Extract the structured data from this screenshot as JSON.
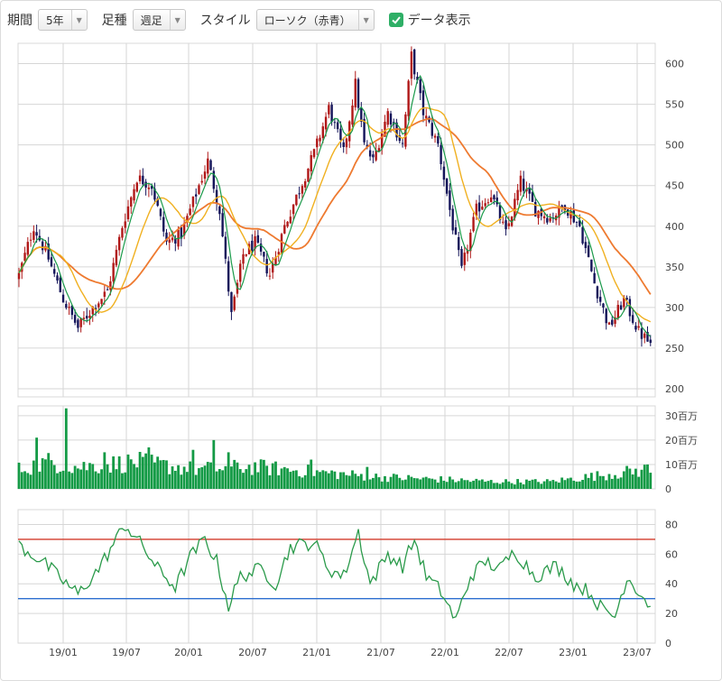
{
  "toolbar": {
    "period_label": "期間",
    "period_value": "5年",
    "interval_label": "足種",
    "interval_value": "週足",
    "style_label": "スタイル",
    "style_value": "ローソク（赤青）",
    "data_display_label": "データ表示",
    "data_display_checked": true
  },
  "colors": {
    "candle_up": "#b01818",
    "candle_down": "#14145a",
    "ma_short": "#1a9a4a",
    "ma_mid": "#f0b020",
    "ma_long": "#ee7a30",
    "volume": "#139a45",
    "rsi_line": "#2a9a4a",
    "rsi_upper": "#d23a2a",
    "rsi_lower": "#2d6fd0",
    "grid": "#d6d6d6"
  },
  "chart_data": [
    {
      "type": "candlestick",
      "panel": "price",
      "x_tick_labels": [
        "19/01",
        "19/07",
        "20/01",
        "20/07",
        "21/01",
        "21/07",
        "22/01",
        "22/07",
        "23/01",
        "23/07"
      ],
      "y_tick_labels": [
        "200",
        "250",
        "300",
        "350",
        "400",
        "450",
        "500",
        "550",
        "600"
      ],
      "ylim": [
        190,
        625
      ],
      "grid": true,
      "close_anchors": [
        {
          "w": 0,
          "v": 340
        },
        {
          "w": 5,
          "v": 400
        },
        {
          "w": 10,
          "v": 360
        },
        {
          "w": 15,
          "v": 310
        },
        {
          "w": 20,
          "v": 275
        },
        {
          "w": 25,
          "v": 300
        },
        {
          "w": 30,
          "v": 320
        },
        {
          "w": 35,
          "v": 400
        },
        {
          "w": 40,
          "v": 460
        },
        {
          "w": 45,
          "v": 450
        },
        {
          "w": 50,
          "v": 380
        },
        {
          "w": 55,
          "v": 390
        },
        {
          "w": 60,
          "v": 440
        },
        {
          "w": 64,
          "v": 480
        },
        {
          "w": 68,
          "v": 420
        },
        {
          "w": 72,
          "v": 290
        },
        {
          "w": 76,
          "v": 365
        },
        {
          "w": 80,
          "v": 380
        },
        {
          "w": 85,
          "v": 340
        },
        {
          "w": 90,
          "v": 400
        },
        {
          "w": 95,
          "v": 445
        },
        {
          "w": 100,
          "v": 490
        },
        {
          "w": 105,
          "v": 545
        },
        {
          "w": 110,
          "v": 490
        },
        {
          "w": 114,
          "v": 575
        },
        {
          "w": 117,
          "v": 500
        },
        {
          "w": 120,
          "v": 480
        },
        {
          "w": 125,
          "v": 540
        },
        {
          "w": 130,
          "v": 500
        },
        {
          "w": 133,
          "v": 610
        },
        {
          "w": 137,
          "v": 540
        },
        {
          "w": 142,
          "v": 500
        },
        {
          "w": 147,
          "v": 400
        },
        {
          "w": 150,
          "v": 345
        },
        {
          "w": 155,
          "v": 420
        },
        {
          "w": 160,
          "v": 440
        },
        {
          "w": 165,
          "v": 390
        },
        {
          "w": 170,
          "v": 455
        },
        {
          "w": 175,
          "v": 420
        },
        {
          "w": 180,
          "v": 410
        },
        {
          "w": 185,
          "v": 425
        },
        {
          "w": 190,
          "v": 400
        },
        {
          "w": 195,
          "v": 330
        },
        {
          "w": 200,
          "v": 275
        },
        {
          "w": 205,
          "v": 310
        },
        {
          "w": 210,
          "v": 270
        },
        {
          "w": 214,
          "v": 255
        }
      ],
      "ma_lines": [
        "short",
        "mid",
        "long"
      ]
    },
    {
      "type": "bar",
      "panel": "volume",
      "y_tick_labels": [
        "0",
        "10百万",
        "20百万",
        "30百万"
      ],
      "ylim": [
        0,
        34
      ],
      "level_anchors": [
        {
          "w": 0,
          "v": 8
        },
        {
          "w": 10,
          "v": 11
        },
        {
          "w": 20,
          "v": 9
        },
        {
          "w": 40,
          "v": 11
        },
        {
          "w": 60,
          "v": 8
        },
        {
          "w": 80,
          "v": 9
        },
        {
          "w": 100,
          "v": 7
        },
        {
          "w": 120,
          "v": 5
        },
        {
          "w": 140,
          "v": 4
        },
        {
          "w": 160,
          "v": 3
        },
        {
          "w": 180,
          "v": 3
        },
        {
          "w": 200,
          "v": 6
        },
        {
          "w": 214,
          "v": 8
        }
      ],
      "spikes": [
        {
          "w": 6,
          "v": 21
        },
        {
          "w": 16,
          "v": 33
        },
        {
          "w": 29,
          "v": 15
        },
        {
          "w": 44,
          "v": 17
        },
        {
          "w": 59,
          "v": 16
        },
        {
          "w": 66,
          "v": 20
        },
        {
          "w": 71,
          "v": 15
        },
        {
          "w": 99,
          "v": 12
        },
        {
          "w": 118,
          "v": 9
        },
        {
          "w": 213,
          "v": 10
        }
      ]
    },
    {
      "type": "line",
      "panel": "rsi",
      "y_tick_labels": [
        "0",
        "20",
        "40",
        "60",
        "80"
      ],
      "ylim": [
        0,
        90
      ],
      "reference_lines": [
        70,
        30
      ],
      "anchors": [
        {
          "w": 0,
          "v": 66
        },
        {
          "w": 8,
          "v": 55
        },
        {
          "w": 15,
          "v": 42
        },
        {
          "w": 20,
          "v": 33
        },
        {
          "w": 27,
          "v": 50
        },
        {
          "w": 33,
          "v": 70
        },
        {
          "w": 36,
          "v": 80
        },
        {
          "w": 42,
          "v": 65
        },
        {
          "w": 47,
          "v": 50
        },
        {
          "w": 53,
          "v": 38
        },
        {
          "w": 58,
          "v": 58
        },
        {
          "w": 63,
          "v": 70
        },
        {
          "w": 67,
          "v": 55
        },
        {
          "w": 71,
          "v": 25
        },
        {
          "w": 75,
          "v": 45
        },
        {
          "w": 82,
          "v": 50
        },
        {
          "w": 87,
          "v": 40
        },
        {
          "w": 92,
          "v": 65
        },
        {
          "w": 100,
          "v": 68
        },
        {
          "w": 105,
          "v": 50
        },
        {
          "w": 110,
          "v": 45
        },
        {
          "w": 115,
          "v": 75
        },
        {
          "w": 119,
          "v": 40
        },
        {
          "w": 125,
          "v": 60
        },
        {
          "w": 130,
          "v": 52
        },
        {
          "w": 134,
          "v": 70
        },
        {
          "w": 138,
          "v": 45
        },
        {
          "w": 143,
          "v": 35
        },
        {
          "w": 148,
          "v": 15
        },
        {
          "w": 153,
          "v": 45
        },
        {
          "w": 158,
          "v": 55
        },
        {
          "w": 163,
          "v": 50
        },
        {
          "w": 168,
          "v": 62
        },
        {
          "w": 175,
          "v": 45
        },
        {
          "w": 182,
          "v": 52
        },
        {
          "w": 188,
          "v": 40
        },
        {
          "w": 193,
          "v": 35
        },
        {
          "w": 198,
          "v": 22
        },
        {
          "w": 202,
          "v": 18
        },
        {
          "w": 206,
          "v": 45
        },
        {
          "w": 210,
          "v": 35
        },
        {
          "w": 214,
          "v": 25
        }
      ]
    }
  ]
}
